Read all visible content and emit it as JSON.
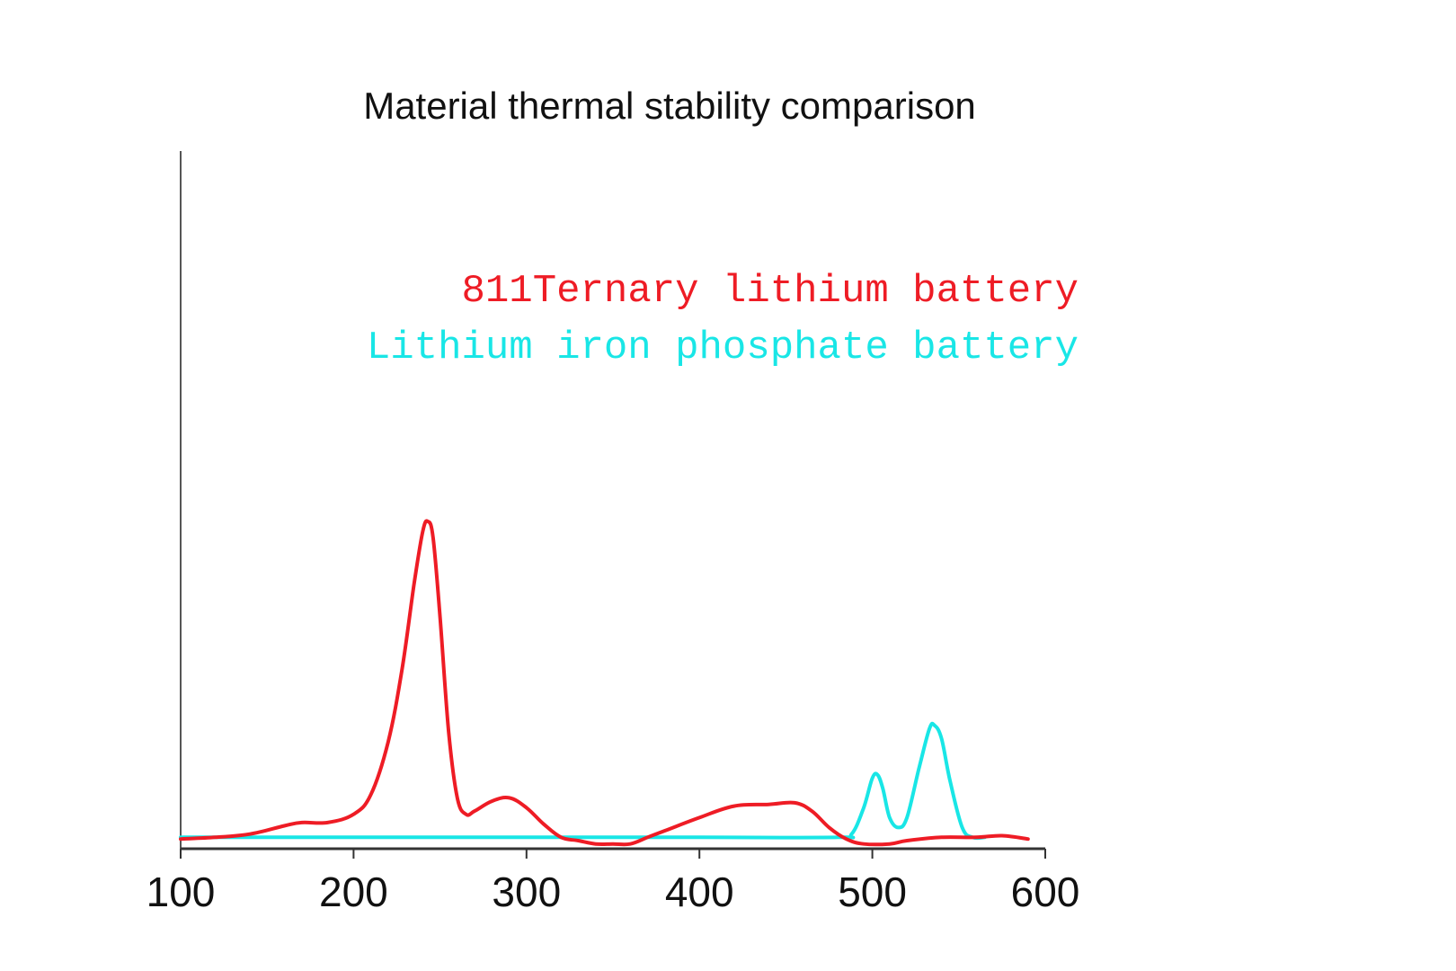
{
  "chart_data": {
    "type": "line",
    "title": "Material thermal stability comparison",
    "xlabel": "",
    "ylabel": "",
    "xlim": [
      100,
      600
    ],
    "ylim": [
      0,
      100
    ],
    "x_ticks": [
      100,
      200,
      300,
      400,
      500,
      600
    ],
    "y_ticks": [],
    "grid": false,
    "legend_position": "top-right",
    "series": [
      {
        "name": "811Ternary lithium battery",
        "color": "#ee1c25",
        "x": [
          100,
          120,
          140,
          160,
          170,
          185,
          200,
          210,
          220,
          228,
          235,
          240,
          243,
          246,
          250,
          255,
          260,
          265,
          270,
          280,
          290,
          300,
          310,
          320,
          330,
          340,
          350,
          360,
          370,
          380,
          400,
          420,
          440,
          455,
          465,
          475,
          485,
          495,
          510,
          520,
          540,
          560,
          575,
          590
        ],
        "y": [
          0.5,
          1,
          2,
          4.5,
          5.5,
          5.5,
          8,
          14,
          30,
          52,
          78,
          94,
          97,
          92,
          68,
          33,
          13,
          8,
          9,
          12,
          13,
          10,
          5,
          1,
          0,
          -1,
          -1,
          -1,
          1,
          3,
          7,
          10.5,
          11,
          11.5,
          9,
          4,
          0.5,
          -1,
          -1,
          0,
          1,
          1,
          1.5,
          0.5
        ]
      },
      {
        "name": "Lithium iron phosphate battery",
        "color": "#19e6e6",
        "x": [
          100,
          200,
          300,
          400,
          480,
          488,
          495,
          500,
          503,
          506,
          510,
          515,
          520,
          527,
          533,
          536,
          540,
          545,
          552,
          558,
          565
        ],
        "y": [
          1,
          1,
          1,
          1,
          1,
          2,
          10,
          19,
          20,
          16,
          7,
          4,
          7,
          22,
          34,
          35,
          31,
          18,
          4,
          1,
          1
        ]
      }
    ]
  }
}
